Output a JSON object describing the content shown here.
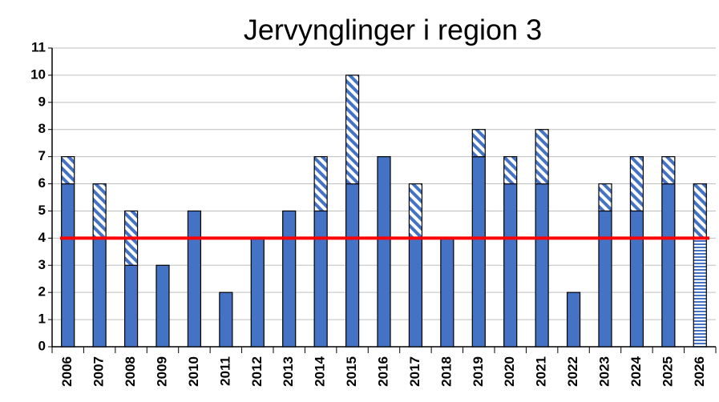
{
  "chart_data": {
    "type": "bar",
    "stacked": true,
    "title": "Jervynglinger i region 3",
    "categories": [
      "2006",
      "2007",
      "2008",
      "2009",
      "2010",
      "2011",
      "2012",
      "2013",
      "2014",
      "2015",
      "2016",
      "2017",
      "2018",
      "2019",
      "2020",
      "2021",
      "2022",
      "2023",
      "2024",
      "2025",
      "2026"
    ],
    "series": [
      {
        "color": "#4472c4",
        "pattern": "solid",
        "values": [
          6,
          4,
          3,
          3,
          5,
          2,
          4,
          5,
          5,
          6,
          7,
          4,
          4,
          7,
          6,
          6,
          2,
          5,
          5,
          6,
          null
        ]
      },
      {
        "color": "#4472c4",
        "pattern": "horizontal",
        "values": [
          null,
          null,
          null,
          null,
          null,
          null,
          null,
          null,
          null,
          null,
          null,
          null,
          null,
          null,
          null,
          null,
          null,
          null,
          null,
          null,
          4
        ]
      },
      {
        "color": "#4472c4",
        "pattern": "diagonal",
        "values": [
          1,
          2,
          2,
          null,
          null,
          null,
          null,
          null,
          2,
          4,
          null,
          2,
          null,
          1,
          1,
          2,
          null,
          1,
          2,
          1,
          2
        ]
      }
    ],
    "reference_line": {
      "value": 4,
      "color": "#ff0000"
    },
    "ylim": [
      0,
      11
    ],
    "yticks": [
      0,
      1,
      2,
      3,
      4,
      5,
      6,
      7,
      8,
      9,
      10,
      11
    ],
    "grid": true
  }
}
